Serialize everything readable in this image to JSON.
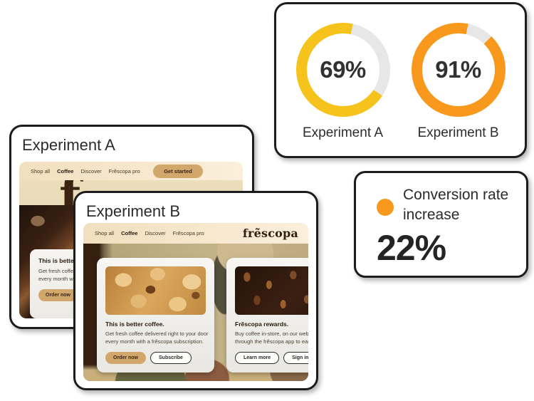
{
  "colors": {
    "yellow": "#F5C31B",
    "orange": "#F8991D",
    "track": "#E7E7E7",
    "tan_button": "#D2A76C",
    "dark_ink": "#1C1C1C"
  },
  "chart_data": [
    {
      "type": "pie",
      "subtype": "donut-pair",
      "series": [
        {
          "label": "Experiment A",
          "value": 69,
          "display": "69%",
          "color": "#F5C31B"
        },
        {
          "label": "Experiment B",
          "value": 91,
          "display": "91%",
          "color": "#F8991D"
        }
      ],
      "track_color": "#E7E7E7",
      "legend_position": "below"
    },
    {
      "type": "metric",
      "label": "Conversion rate increase",
      "value": "22%",
      "dot_color": "#F8991D"
    }
  ],
  "experiment_a": {
    "title": "Experiment A",
    "site": {
      "nav": [
        "Shop all",
        "Coffee",
        "Discover",
        "Frẽscopa pro"
      ],
      "cta": "Get started",
      "logo_mark_letter": "f",
      "logo_mark_accent": "~",
      "promo": {
        "heading": "This is better coffee.",
        "body1": "Get fresh coffee delivered right to your door",
        "body2": "every month with a frẽscopa subscription.",
        "order_button": "Order now"
      }
    }
  },
  "experiment_b": {
    "title": "Experiment B",
    "site": {
      "nav": [
        "Shop all",
        "Coffee",
        "Discover",
        "Frẽscopa pro"
      ],
      "logo": "frẽscopa",
      "products": [
        {
          "heading": "This is better coffee.",
          "body1": "Get fresh coffee delivered right to your door",
          "body2": "every month with a frẽscopa subscription.",
          "button_primary": "Order now",
          "button_secondary": "Subscribe"
        },
        {
          "heading": "Frẽscopa rewards.",
          "body1": "Buy coffee in-store, on our website, or",
          "body2": "through the frẽscopa app to earn points.",
          "button_primary": "Learn more",
          "button_secondary": "Sign in"
        }
      ]
    }
  }
}
